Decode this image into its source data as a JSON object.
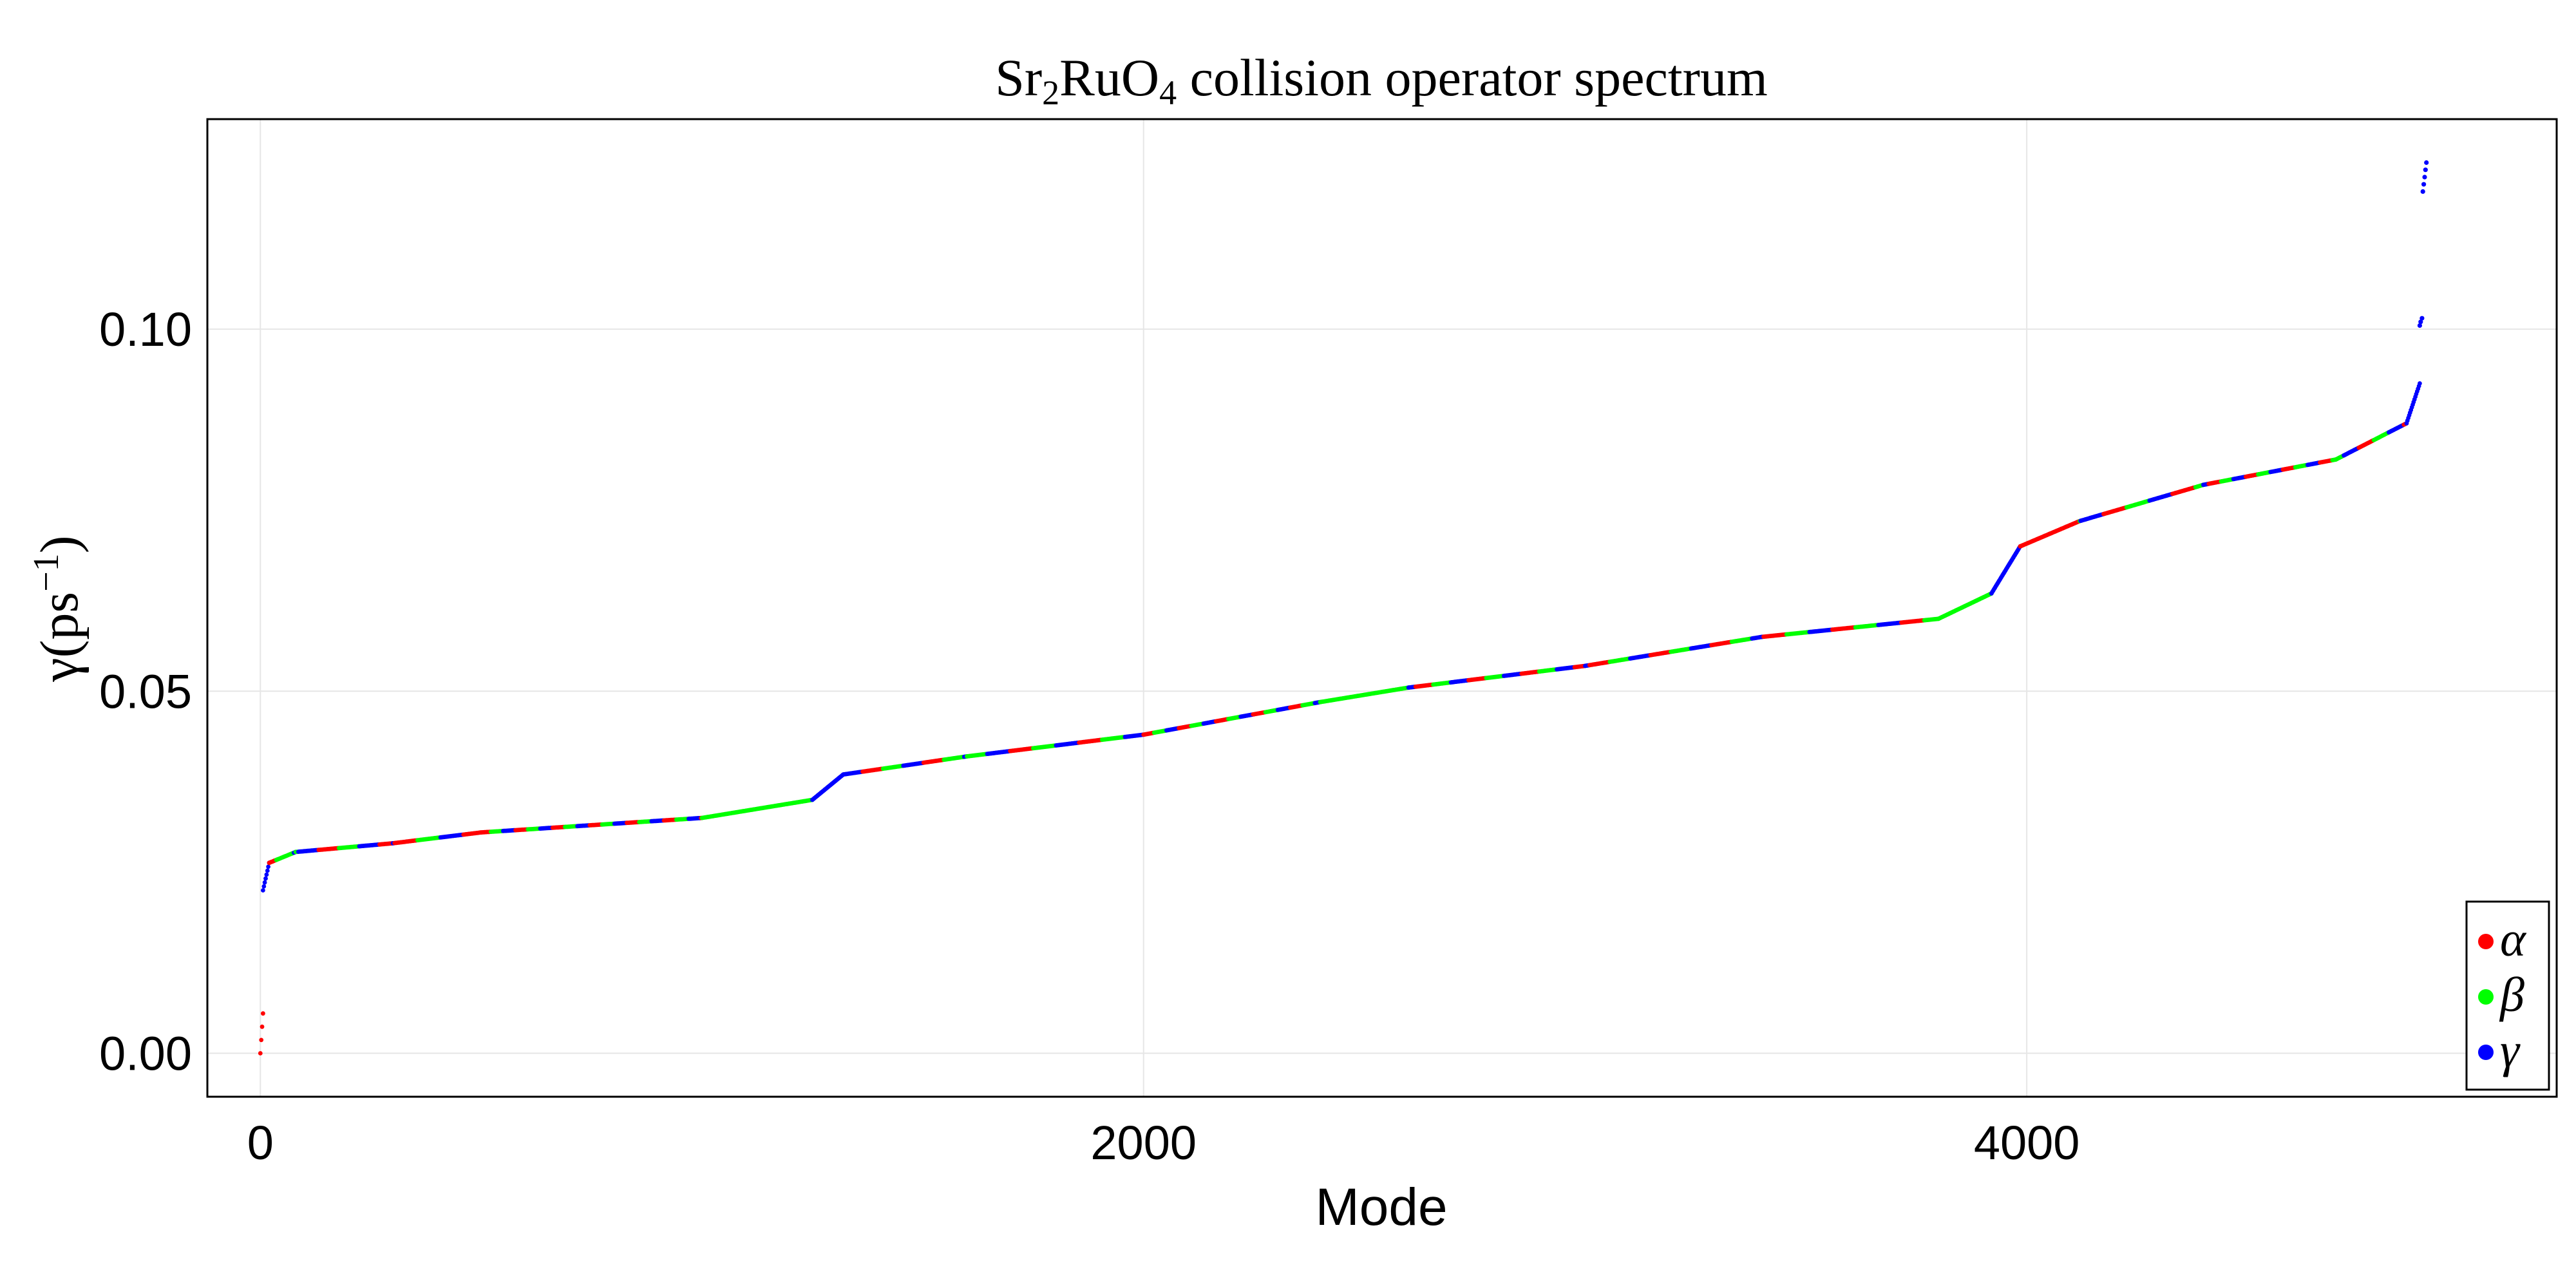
{
  "chart_data": {
    "type": "scatter",
    "title_parts": {
      "a": "Sr",
      "a_sub": "2",
      "b": "RuO",
      "b_sub": "4",
      "c": " collision operator spectrum"
    },
    "xlabel": "Mode",
    "ylabel_parts": {
      "main": "γ(ps",
      "sup": "−1",
      "close": ")"
    },
    "xlim": [
      -120,
      5200
    ],
    "ylim": [
      -0.006,
      0.129
    ],
    "xticks": [
      0,
      2000,
      4000
    ],
    "xtick_labels": [
      "0",
      "2000",
      "4000"
    ],
    "yticks": [
      0.0,
      0.05,
      0.1
    ],
    "ytick_labels": [
      "0.00",
      "0.05",
      "0.10"
    ],
    "grid": true,
    "legend_position": "bottom-right",
    "legend": [
      {
        "name": "α",
        "color": "#ff0000"
      },
      {
        "name": "β",
        "color": "#00ff00"
      },
      {
        "name": "γ",
        "color": "#0000ff"
      }
    ],
    "series_color_cycle": [
      "#ff0000",
      "#00ff00",
      "#0000ff"
    ],
    "segments": [
      {
        "x": [
          0,
          6
        ],
        "y": [
          0.0,
          0.0055
        ],
        "band": "mixed"
      },
      {
        "x": [
          6,
          20
        ],
        "y": [
          0.0225,
          0.0263
        ],
        "band": "γ"
      },
      {
        "x": [
          20,
          80
        ],
        "y": [
          0.0263,
          0.0278
        ],
        "band": "mixed"
      },
      {
        "x": [
          80,
          300
        ],
        "y": [
          0.0278,
          0.029
        ],
        "band": "mixed"
      },
      {
        "x": [
          300,
          500
        ],
        "y": [
          0.029,
          0.0305
        ],
        "band": "mixed"
      },
      {
        "x": [
          500,
          1000
        ],
        "y": [
          0.0305,
          0.0325
        ],
        "band": "mixed"
      },
      {
        "x": [
          1000,
          1250
        ],
        "y": [
          0.0325,
          0.035
        ],
        "band": "β"
      },
      {
        "x": [
          1250,
          1320
        ],
        "y": [
          0.035,
          0.0385
        ],
        "band": "γ"
      },
      {
        "x": [
          1320,
          1600
        ],
        "y": [
          0.0385,
          0.041
        ],
        "band": "mixed"
      },
      {
        "x": [
          1600,
          2000
        ],
        "y": [
          0.041,
          0.044
        ],
        "band": "mixed"
      },
      {
        "x": [
          2000,
          2400
        ],
        "y": [
          0.044,
          0.0485
        ],
        "band": "mixed"
      },
      {
        "x": [
          2400,
          2600
        ],
        "y": [
          0.0485,
          0.0505
        ],
        "band": "β"
      },
      {
        "x": [
          2600,
          3000
        ],
        "y": [
          0.0505,
          0.0535
        ],
        "band": "mixed"
      },
      {
        "x": [
          3000,
          3400
        ],
        "y": [
          0.0535,
          0.0575
        ],
        "band": "mixed"
      },
      {
        "x": [
          3400,
          3800
        ],
        "y": [
          0.0575,
          0.06
        ],
        "band": "mixed"
      },
      {
        "x": [
          3800,
          3920
        ],
        "y": [
          0.06,
          0.0635
        ],
        "band": "β"
      },
      {
        "x": [
          3920,
          3985
        ],
        "y": [
          0.0635,
          0.07
        ],
        "band": "γ"
      },
      {
        "x": [
          3985,
          4120
        ],
        "y": [
          0.07,
          0.0735
        ],
        "band": "α"
      },
      {
        "x": [
          4120,
          4400
        ],
        "y": [
          0.0735,
          0.0785
        ],
        "band": "mixed"
      },
      {
        "x": [
          4400,
          4700
        ],
        "y": [
          0.0785,
          0.082
        ],
        "band": "mixed"
      },
      {
        "x": [
          4700,
          4860
        ],
        "y": [
          0.082,
          0.087
        ],
        "band": "mixed"
      },
      {
        "x": [
          4860,
          4890
        ],
        "y": [
          0.087,
          0.0925
        ],
        "band": "γ"
      }
    ],
    "outliers": [
      {
        "x": 4890,
        "y": 0.1005,
        "band": "γ"
      },
      {
        "x": 4892,
        "y": 0.101,
        "band": "γ"
      },
      {
        "x": 4895,
        "y": 0.1015,
        "band": "γ"
      },
      {
        "x": 4897,
        "y": 0.119,
        "band": "γ"
      },
      {
        "x": 4899,
        "y": 0.12,
        "band": "γ"
      },
      {
        "x": 4901,
        "y": 0.121,
        "band": "γ"
      },
      {
        "x": 4903,
        "y": 0.122,
        "band": "γ"
      },
      {
        "x": 4905,
        "y": 0.123,
        "band": "γ"
      }
    ]
  }
}
